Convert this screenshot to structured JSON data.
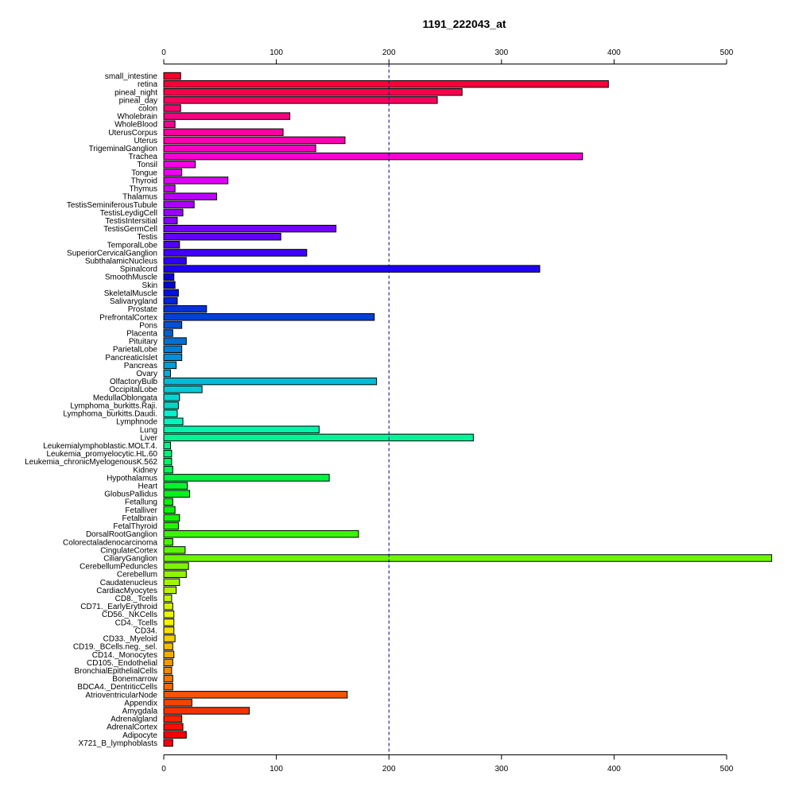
{
  "chart_data": {
    "type": "bar",
    "orientation": "horizontal",
    "title": "1191_222043_at",
    "xlim": [
      0,
      500
    ],
    "xticks": [
      0,
      100,
      200,
      300,
      400,
      500
    ],
    "reference_line": 200,
    "grid": false,
    "categories": [
      "small_intestine",
      "retina",
      "pineal_night",
      "pineal_day",
      "colon",
      "Wholebrain",
      "WholeBlood",
      "UterusCorpus",
      "Uterus",
      "TrigeminalGanglion",
      "Trachea",
      "Tonsil",
      "Tongue",
      "Thyroid",
      "Thymus",
      "Thalamus",
      "TestisSeminiferousTubule",
      "TestisLeydigCell",
      "TestisIntersitial",
      "TestisGermCell",
      "Testis",
      "TemporalLobe",
      "SuperiorCervicalGanglion",
      "SubthalamicNucleus",
      "Spinalcord",
      "SmoothMuscle",
      "Skin",
      "SkeletalMuscle",
      "Salivarygland",
      "Prostate",
      "PrefrontalCortex",
      "Pons",
      "Placenta",
      "Pituitary",
      "ParietalLobe",
      "PancreaticIslet",
      "Pancreas",
      "Ovary",
      "OlfactoryBulb",
      "OccipitalLobe",
      "MedullaOblongata",
      "Lymphoma_burkitts.Raji.",
      "Lymphoma_burkitts.Daudi.",
      "Lymphnode",
      "Lung",
      "Liver",
      "Leukemialymphoblastic.MOLT.4.",
      "Leukemia_promyelocytic.HL.60",
      "Leukemia_chronicMyelogenousK.562",
      "Kidney",
      "Hypothalamus",
      "Heart",
      "GlobusPallidus",
      "Fetallung",
      "Fetalliver",
      "Fetalbrain",
      "FetalThyroid",
      "DorsalRootGanglion",
      "Colorectaladenocarcinoma",
      "CingulateCortex",
      "CiliaryGanglion",
      "CerebellumPeduncles",
      "Cerebellum",
      "Caudatenucleus",
      "CardiacMyocytes",
      "CD8._Tcells",
      "CD71._EarlyErythroid",
      "CD56._NKCells",
      "CD4._Tcells",
      "CD34.",
      "CD33._Myeloid",
      "CD19._BCells.neg._sel.",
      "CD14._Monocytes",
      "CD105._Endothelial",
      "BronchialEpithelialCells",
      "Bonemarrow",
      "BDCA4._DentriticCells",
      "AtrioventricularNode",
      "Appendix",
      "Amygdala",
      "Adrenalgland",
      "AdrenalCortex",
      "Adipocyte",
      "X721_B_lymphoblasts"
    ],
    "values": [
      15,
      395,
      265,
      243,
      15,
      112,
      10,
      106,
      161,
      135,
      372,
      28,
      16,
      57,
      10,
      47,
      27,
      17,
      12,
      153,
      104,
      14,
      127,
      20,
      334,
      9,
      10,
      13,
      12,
      38,
      187,
      16,
      8,
      20,
      16,
      16,
      11,
      6,
      189,
      34,
      14,
      13,
      12,
      17,
      138,
      275,
      6,
      7,
      7,
      8,
      147,
      21,
      23,
      8,
      10,
      14,
      13,
      173,
      8,
      19,
      540,
      22,
      20,
      14,
      11,
      7,
      8,
      9,
      9,
      9,
      10,
      8,
      9,
      8,
      7,
      8,
      8,
      163,
      25,
      76,
      16,
      17,
      20,
      8
    ]
  }
}
